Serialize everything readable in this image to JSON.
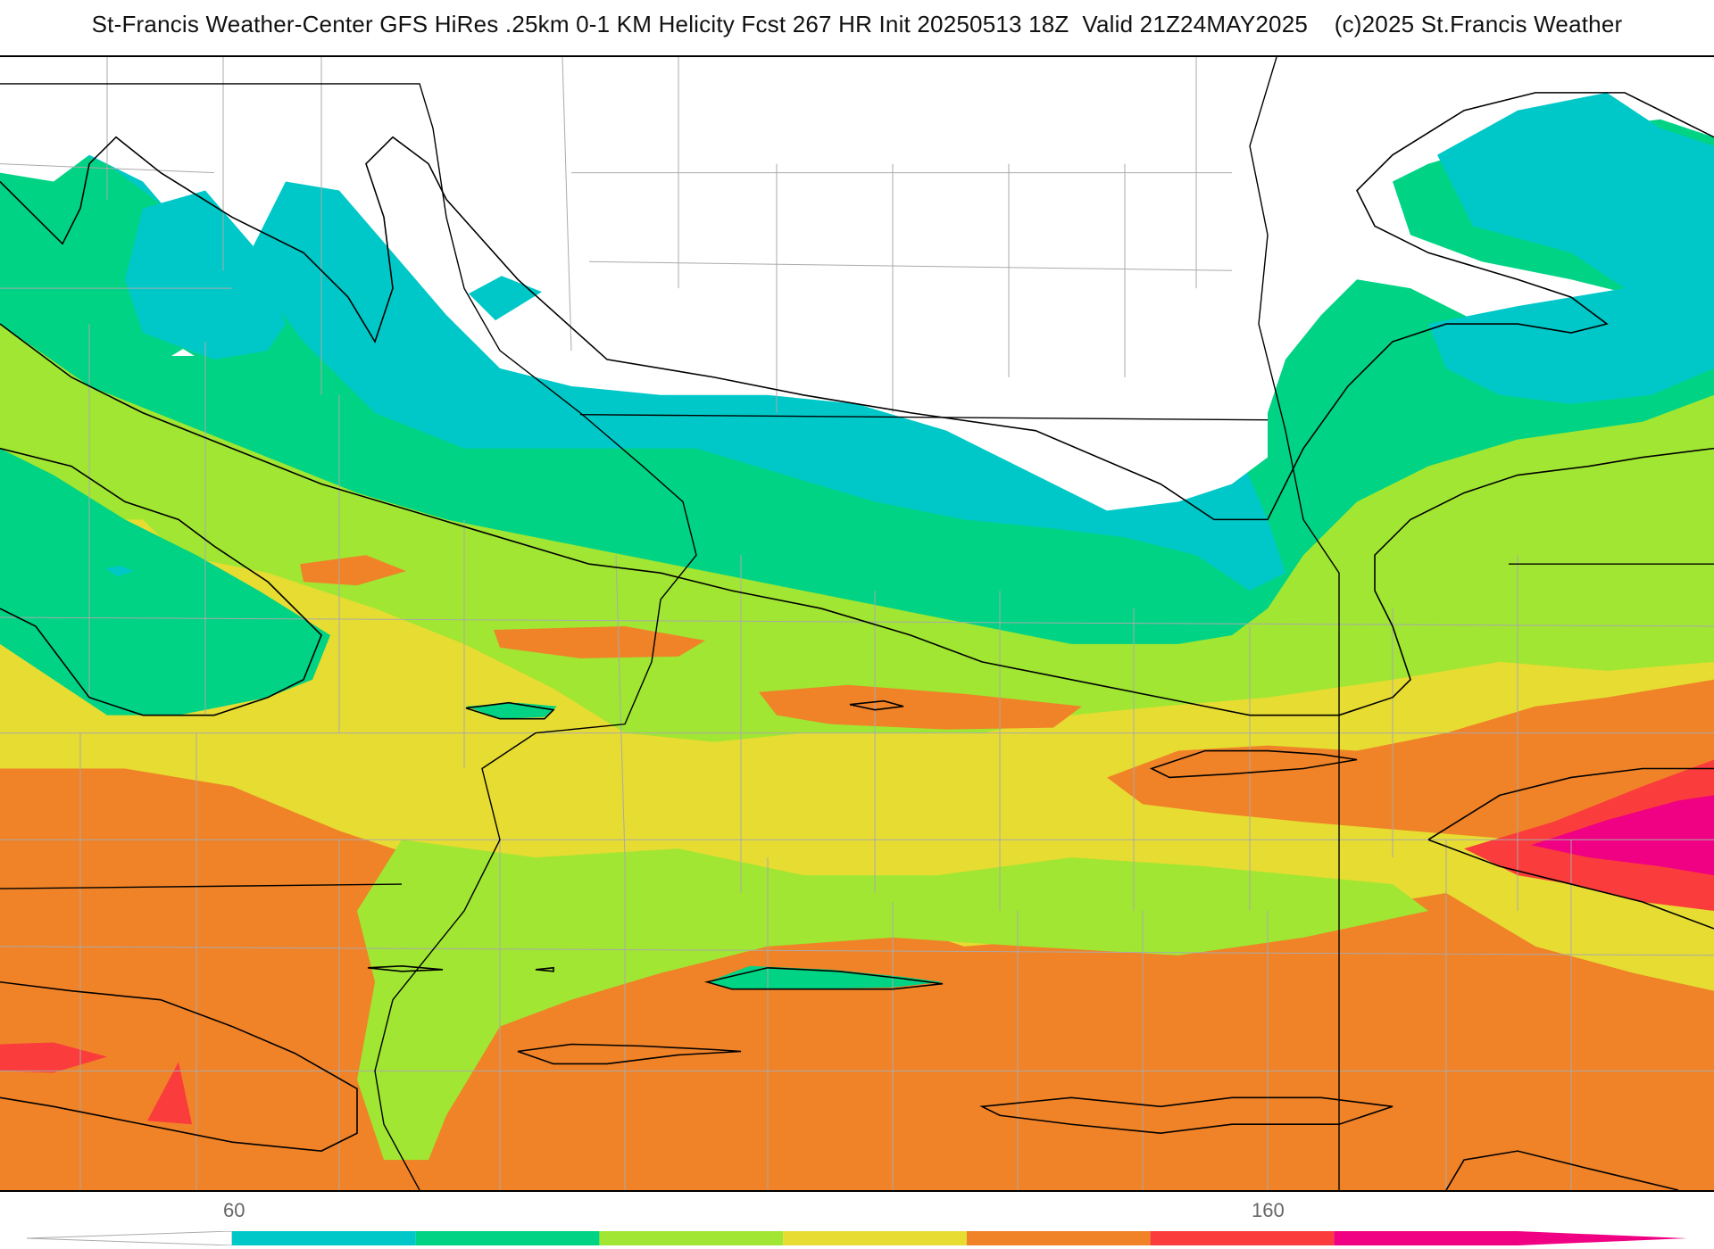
{
  "title": "St-Francis Weather-Center GFS HiRes .25km 0-1 KM Helicity Fcst 267 HR Init 20250513 18Z  Valid 21Z24MAY2025    (c)2025 St.Francis Weather",
  "legend": {
    "ticks": [
      {
        "label": "60",
        "value": 60
      },
      {
        "label": "160",
        "value": 160
      }
    ],
    "bins": [
      {
        "from": 60,
        "to": 80,
        "color": "#00c8c8"
      },
      {
        "from": 80,
        "to": 100,
        "color": "#00d384"
      },
      {
        "from": 100,
        "to": 120,
        "color": "#a0e632"
      },
      {
        "from": 120,
        "to": 140,
        "color": "#e6dc32"
      },
      {
        "from": 140,
        "to": 160,
        "color": "#f08228"
      },
      {
        "from": 160,
        "to": 180,
        "color": "#fa3c3c"
      },
      {
        "from": 180,
        "to": 200,
        "color": "#f00082"
      }
    ],
    "below_color": "#ffffff",
    "outline_color": "#000000",
    "grid_line_color": "#aaaaaa"
  }
}
